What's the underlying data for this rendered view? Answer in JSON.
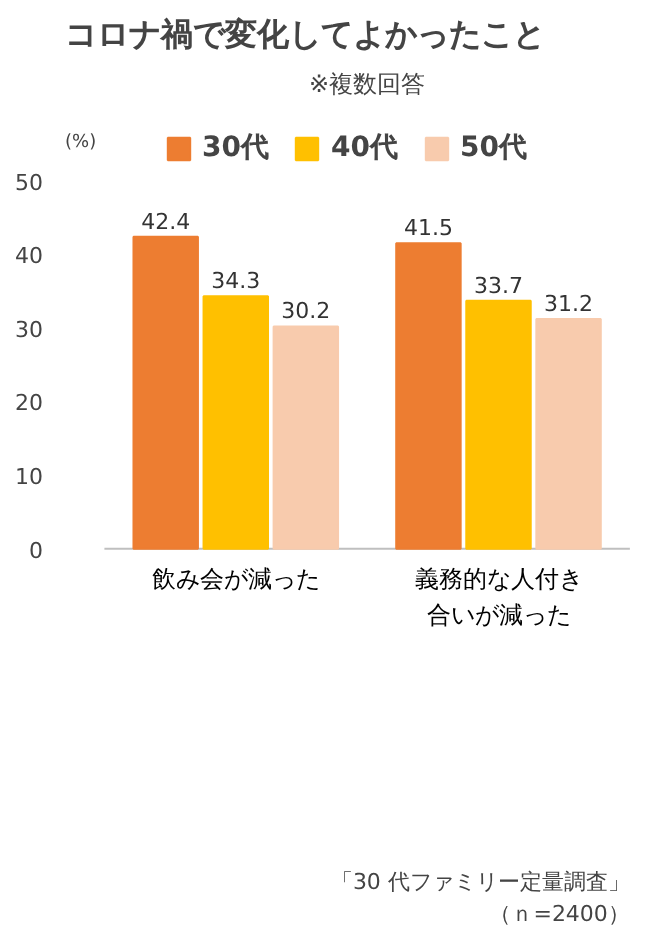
{
  "chart_data": {
    "type": "bar",
    "title": "コロナ禍で変化してよかったこと",
    "subtitle": "※複数回答",
    "ylabel": "(%)",
    "categories": [
      "飲み会が減った",
      "義務的な人付き合いが減った"
    ],
    "series": [
      {
        "name": "30代",
        "color": "#ed7d31",
        "values": [
          42.4,
          41.5
        ]
      },
      {
        "name": "40代",
        "color": "#ffc000",
        "values": [
          34.3,
          33.7
        ]
      },
      {
        "name": "50代",
        "color": "#f8cbad",
        "values": [
          30.2,
          31.2
        ]
      }
    ],
    "ylim": [
      0,
      50
    ],
    "yticks": [
      0,
      10,
      20,
      30,
      40,
      50
    ],
    "grid": false,
    "legend": "top",
    "data_labels": true,
    "annotations": [
      "「30 代ファミリー定量調査」",
      "（ｎ=2400）"
    ]
  }
}
